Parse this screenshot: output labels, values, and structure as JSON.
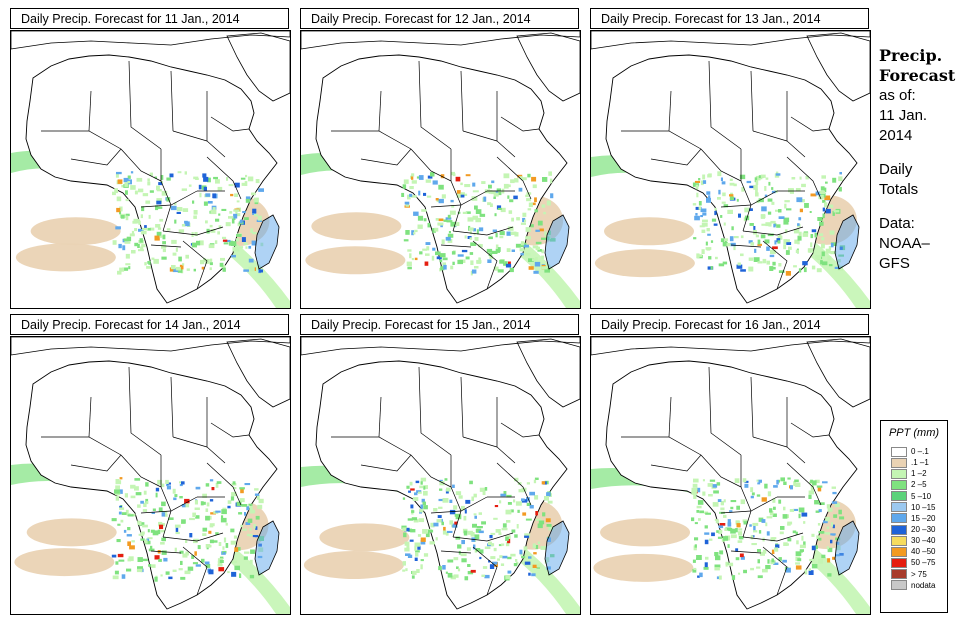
{
  "panels": [
    {
      "title": "Daily Precip. Forecast for  11 Jan., 2014"
    },
    {
      "title": "Daily Precip. Forecast for  12 Jan., 2014"
    },
    {
      "title": "Daily Precip. Forecast for  13 Jan., 2014"
    },
    {
      "title": "Daily Precip. Forecast for  14 Jan., 2014"
    },
    {
      "title": "Daily Precip. Forecast for  15 Jan., 2014"
    },
    {
      "title": "Daily Precip. Forecast for  16 Jan., 2014"
    }
  ],
  "sidebar": {
    "title_line1": "Precip.",
    "title_line2": "Forecast",
    "asof_label": "as of:",
    "date_line1": "11 Jan.",
    "date_line2": "2014",
    "totals_line1": "Daily",
    "totals_line2": "Totals",
    "data_label": "Data:",
    "source_line1": "NOAA–",
    "source_line2": "GFS"
  },
  "legend": {
    "title": "PPT (mm)",
    "items": [
      {
        "label": "0 –.1",
        "color": "#ffffff"
      },
      {
        "label": ".1 –1",
        "color": "#ead3b4"
      },
      {
        "label": "1 –2",
        "color": "#c4f5b4"
      },
      {
        "label": "2 –5",
        "color": "#7fe27f"
      },
      {
        "label": "5 –10",
        "color": "#5cd27a"
      },
      {
        "label": "10 –15",
        "color": "#9cc9f0"
      },
      {
        "label": "15 –20",
        "color": "#5fa8ec"
      },
      {
        "label": "20 –30",
        "color": "#1f63d8"
      },
      {
        "label": "30 –40",
        "color": "#f6dc5e"
      },
      {
        "label": "40 –50",
        "color": "#f29a22"
      },
      {
        "label": "50 –75",
        "color": "#e51e10"
      },
      {
        "label": "> 75",
        "color": "#a83c2c"
      },
      {
        "label": "nodata",
        "color": "#c8c8c8"
      }
    ]
  },
  "colors": {
    "dry": "#ead3b4",
    "light_green": "#c4f5b4",
    "green": "#7fe27f",
    "blue": "#5fa8ec",
    "dark_blue": "#1f63d8",
    "red": "#e51e10",
    "orange": "#f29a22"
  }
}
